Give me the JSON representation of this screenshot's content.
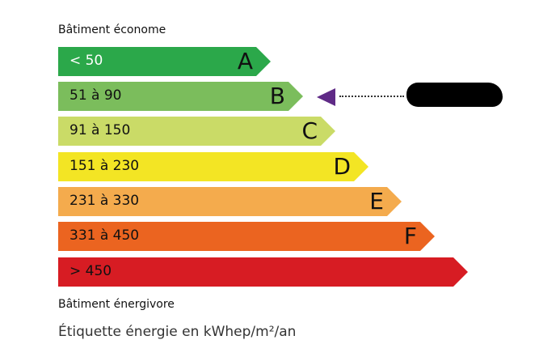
{
  "header": {
    "top_label": "Bâtiment économe",
    "bottom_label": "Bâtiment énergivore"
  },
  "classes": [
    {
      "range": "< 50",
      "letter": "A",
      "color": "#2ba84a"
    },
    {
      "range": "51 à 90",
      "letter": "B",
      "color": "#7bbd5c"
    },
    {
      "range": "91 à 150",
      "letter": "C",
      "color": "#cadb67"
    },
    {
      "range": "151 à 230",
      "letter": "D",
      "color": "#f3e524"
    },
    {
      "range": "231 à 330",
      "letter": "E",
      "color": "#f4ab4d"
    },
    {
      "range": "331 à 450",
      "letter": "F",
      "color": "#eb6420"
    },
    {
      "range": "> 450",
      "letter": "",
      "color": "#d71c23"
    }
  ],
  "indicator": {
    "current_class": "B",
    "color": "#5f2a86",
    "value_redacted": true
  },
  "footer": {
    "caption": "Étiquette énergie en kWhep/m²/an"
  }
}
